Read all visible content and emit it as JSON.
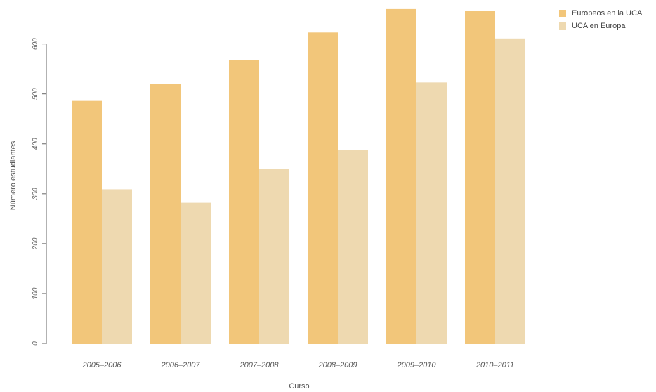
{
  "chart_data": {
    "type": "bar",
    "xlabel": "Curso",
    "ylabel": "Número estudiantes",
    "categories": [
      "2005–2006",
      "2006–2007",
      "2007–2008",
      "2008–2009",
      "2009–2010",
      "2010–2011"
    ],
    "series": [
      {
        "name": "Europeos en la UCA",
        "color": "#f2c67a",
        "values": [
          486,
          520,
          568,
          623,
          670,
          667
        ]
      },
      {
        "name": "UCA en Europa",
        "color": "#eed9b0",
        "values": [
          309,
          282,
          349,
          387,
          523,
          611
        ]
      }
    ],
    "ylim": [
      0,
      670
    ],
    "yticks": [
      0,
      100,
      200,
      300,
      400,
      500,
      600
    ],
    "ytick_labels": [
      "0",
      "100",
      "200",
      "300",
      "400",
      "500",
      "600"
    ],
    "grid": false,
    "legend_position": "top-right"
  }
}
